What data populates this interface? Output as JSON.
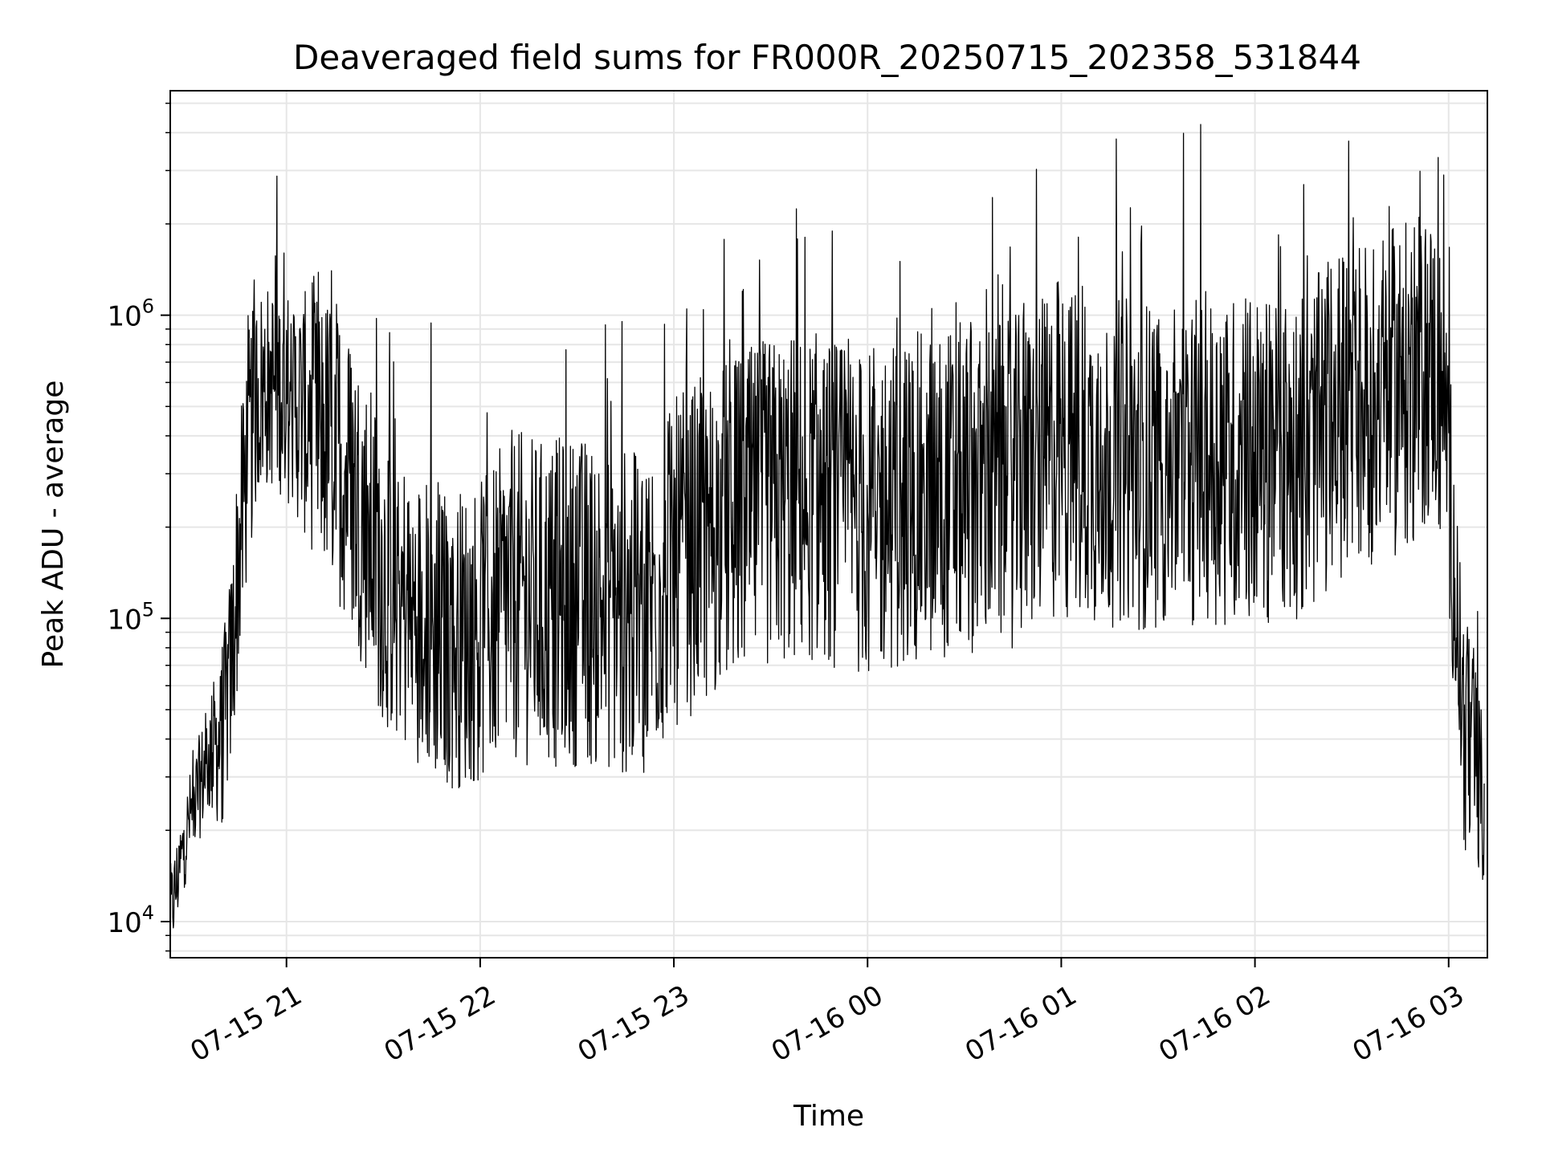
{
  "chart_data": {
    "type": "line",
    "title": "Deaveraged field sums for FR000R_20250715_202358_531844",
    "xlabel": "Time",
    "ylabel": "Peak ADU - average",
    "yscale": "log",
    "grid": true,
    "xlim": [
      "2025-07-15T20:24:00",
      "2025-07-16T03:12:00"
    ],
    "ylim": [
      7600,
      5500000
    ],
    "x_ticks": [
      {
        "value": "2025-07-15T21:00:00",
        "label": "07-15 21"
      },
      {
        "value": "2025-07-15T22:00:00",
        "label": "07-15 22"
      },
      {
        "value": "2025-07-15T23:00:00",
        "label": "07-15 23"
      },
      {
        "value": "2025-07-16T00:00:00",
        "label": "07-16 00"
      },
      {
        "value": "2025-07-16T01:00:00",
        "label": "07-16 01"
      },
      {
        "value": "2025-07-16T02:00:00",
        "label": "07-16 02"
      },
      {
        "value": "2025-07-16T03:00:00",
        "label": "07-16 03"
      }
    ],
    "y_ticks": [
      {
        "value": 10000,
        "base": "10",
        "exp": "4"
      },
      {
        "value": 100000,
        "base": "10",
        "exp": "5"
      },
      {
        "value": 1000000,
        "base": "10",
        "exp": "6"
      }
    ],
    "series": [
      {
        "color": "#000000",
        "x": [
          "2025-07-15T20:24:00",
          "2025-07-15T20:30:00",
          "2025-07-15T20:36:00",
          "2025-07-15T20:40:00",
          "2025-07-15T20:43:00",
          "2025-07-15T20:45:00",
          "2025-07-15T20:48:00",
          "2025-07-15T20:51:00",
          "2025-07-15T20:55:00",
          "2025-07-15T21:00:00",
          "2025-07-15T21:05:00",
          "2025-07-15T21:10:00",
          "2025-07-15T21:15:00",
          "2025-07-15T21:20:00",
          "2025-07-15T21:25:00",
          "2025-07-15T21:30:00",
          "2025-07-15T21:40:00",
          "2025-07-15T21:50:00",
          "2025-07-15T22:00:00",
          "2025-07-15T22:10:00",
          "2025-07-15T22:20:00",
          "2025-07-15T22:30:00",
          "2025-07-15T22:40:00",
          "2025-07-15T22:50:00",
          "2025-07-15T23:00:00",
          "2025-07-15T23:15:00",
          "2025-07-15T23:30:00",
          "2025-07-15T23:45:00",
          "2025-07-16T00:00:00",
          "2025-07-16T00:15:00",
          "2025-07-16T00:30:00",
          "2025-07-16T00:45:00",
          "2025-07-16T01:00:00",
          "2025-07-16T01:15:00",
          "2025-07-16T01:30:00",
          "2025-07-16T01:45:00",
          "2025-07-16T02:00:00",
          "2025-07-16T02:15:00",
          "2025-07-16T02:30:00",
          "2025-07-16T02:40:00",
          "2025-07-16T02:50:00",
          "2025-07-16T02:55:00",
          "2025-07-16T02:59:00",
          "2025-07-16T03:01:00",
          "2025-07-16T03:03:00",
          "2025-07-16T03:05:00",
          "2025-07-16T03:08:00",
          "2025-07-16T03:11:00"
        ],
        "y": [
          10500,
          22000,
          35000,
          40000,
          70000,
          150000,
          350000,
          550000,
          600000,
          550000,
          480000,
          420000,
          380000,
          280000,
          200000,
          140000,
          100000,
          85000,
          90000,
          120000,
          110000,
          115000,
          110000,
          100000,
          150000,
          200000,
          240000,
          250000,
          220000,
          250000,
          270000,
          280000,
          350000,
          330000,
          320000,
          340000,
          330000,
          350000,
          500000,
          550000,
          600000,
          700000,
          500000,
          200000,
          80000,
          40000,
          35000,
          22000
        ],
        "noise_band": [
          0.15,
          0.15,
          0.2,
          0.3,
          0.35,
          0.4,
          0.4,
          0.35,
          0.35,
          0.35,
          0.4,
          0.45,
          0.5,
          0.5,
          0.5,
          0.5,
          0.5,
          0.5,
          0.5,
          0.55,
          0.55,
          0.55,
          0.55,
          0.55,
          0.55,
          0.55,
          0.55,
          0.55,
          0.55,
          0.55,
          0.55,
          0.55,
          0.55,
          0.55,
          0.55,
          0.55,
          0.55,
          0.55,
          0.55,
          0.55,
          0.55,
          0.5,
          0.5,
          0.45,
          0.4,
          0.4,
          0.35,
          0.3
        ]
      }
    ]
  }
}
